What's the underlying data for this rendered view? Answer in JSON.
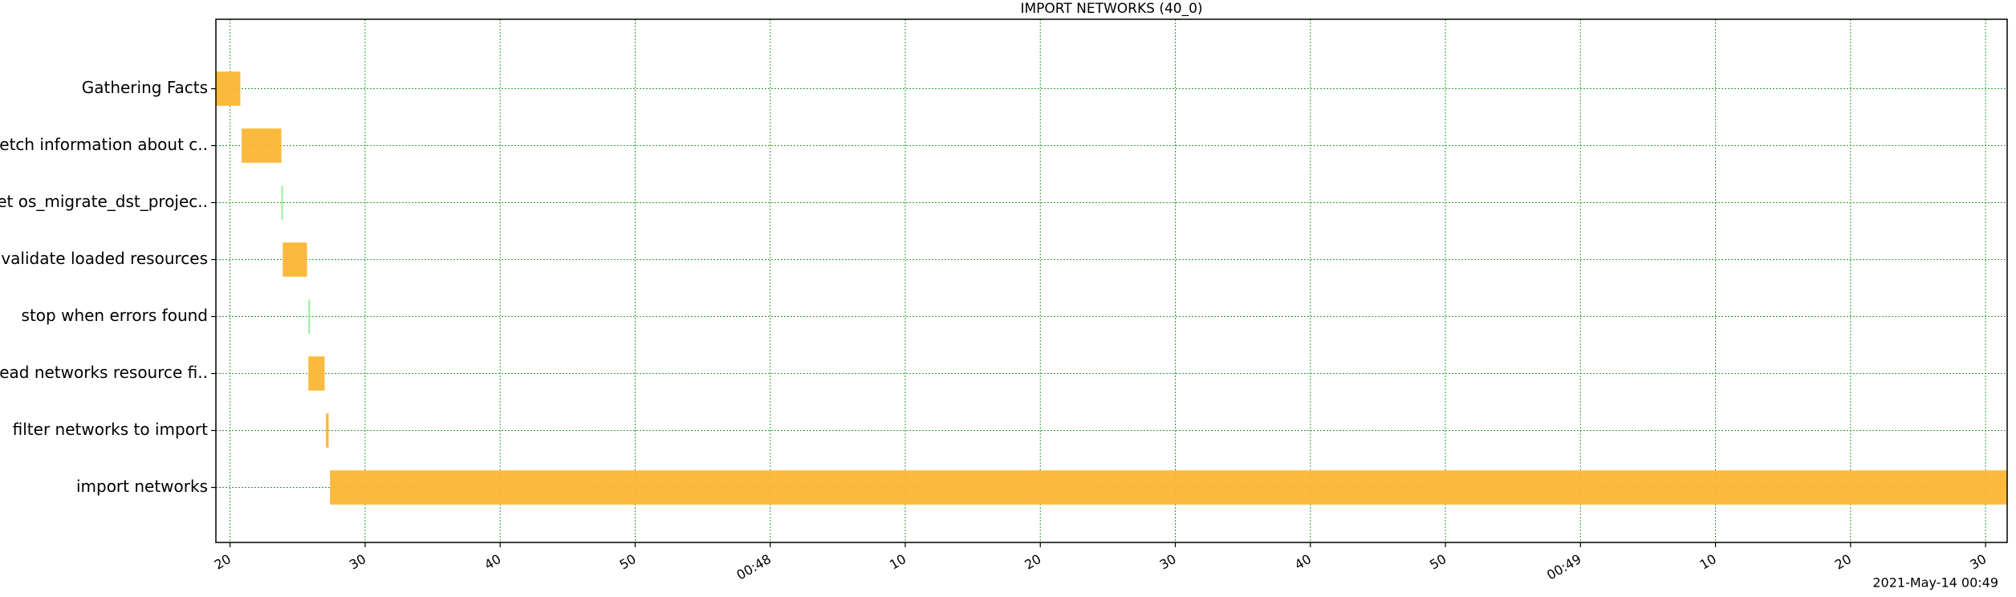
{
  "chart_data": {
    "type": "gantt",
    "title": "IMPORT NETWORKS (40_0)",
    "categories": [
      "Gathering Facts",
      "fetch information about c..",
      "set os_migrate_dst_projec..",
      "validate loaded resources",
      "stop when errors found",
      "read networks resource fi..",
      "filter networks to import",
      "import networks"
    ],
    "starts": [
      18.95,
      20.86,
      23.8,
      23.9,
      25.8,
      25.8,
      27.1,
      27.4
    ],
    "ends": [
      20.76,
      23.8,
      23.9,
      25.7,
      25.9,
      27.0,
      27.3,
      151.6
    ],
    "colors": [
      "#fbb533",
      "#fbb533",
      "#90ee90",
      "#fbb533",
      "#90ee90",
      "#fbb533",
      "#fbb533",
      "#fbb533"
    ],
    "xlim": [
      18.95,
      151.6
    ],
    "xticks": [
      20,
      30,
      40,
      50,
      {
        "value": 60,
        "label": "00:48"
      },
      {
        "value": 70,
        "label": "10"
      },
      {
        "value": 80,
        "label": "20"
      },
      {
        "value": 90,
        "label": "30"
      },
      {
        "value": 100,
        "label": "40"
      },
      {
        "value": 110,
        "label": "50"
      },
      {
        "value": 120,
        "label": "00:49"
      },
      {
        "value": 130,
        "label": "10"
      },
      {
        "value": 140,
        "label": "20"
      },
      {
        "value": 150,
        "label": "30"
      }
    ],
    "x_offset_label": "2021-May-14 00:49",
    "grid": true,
    "grid_color": "#2ca02c"
  }
}
